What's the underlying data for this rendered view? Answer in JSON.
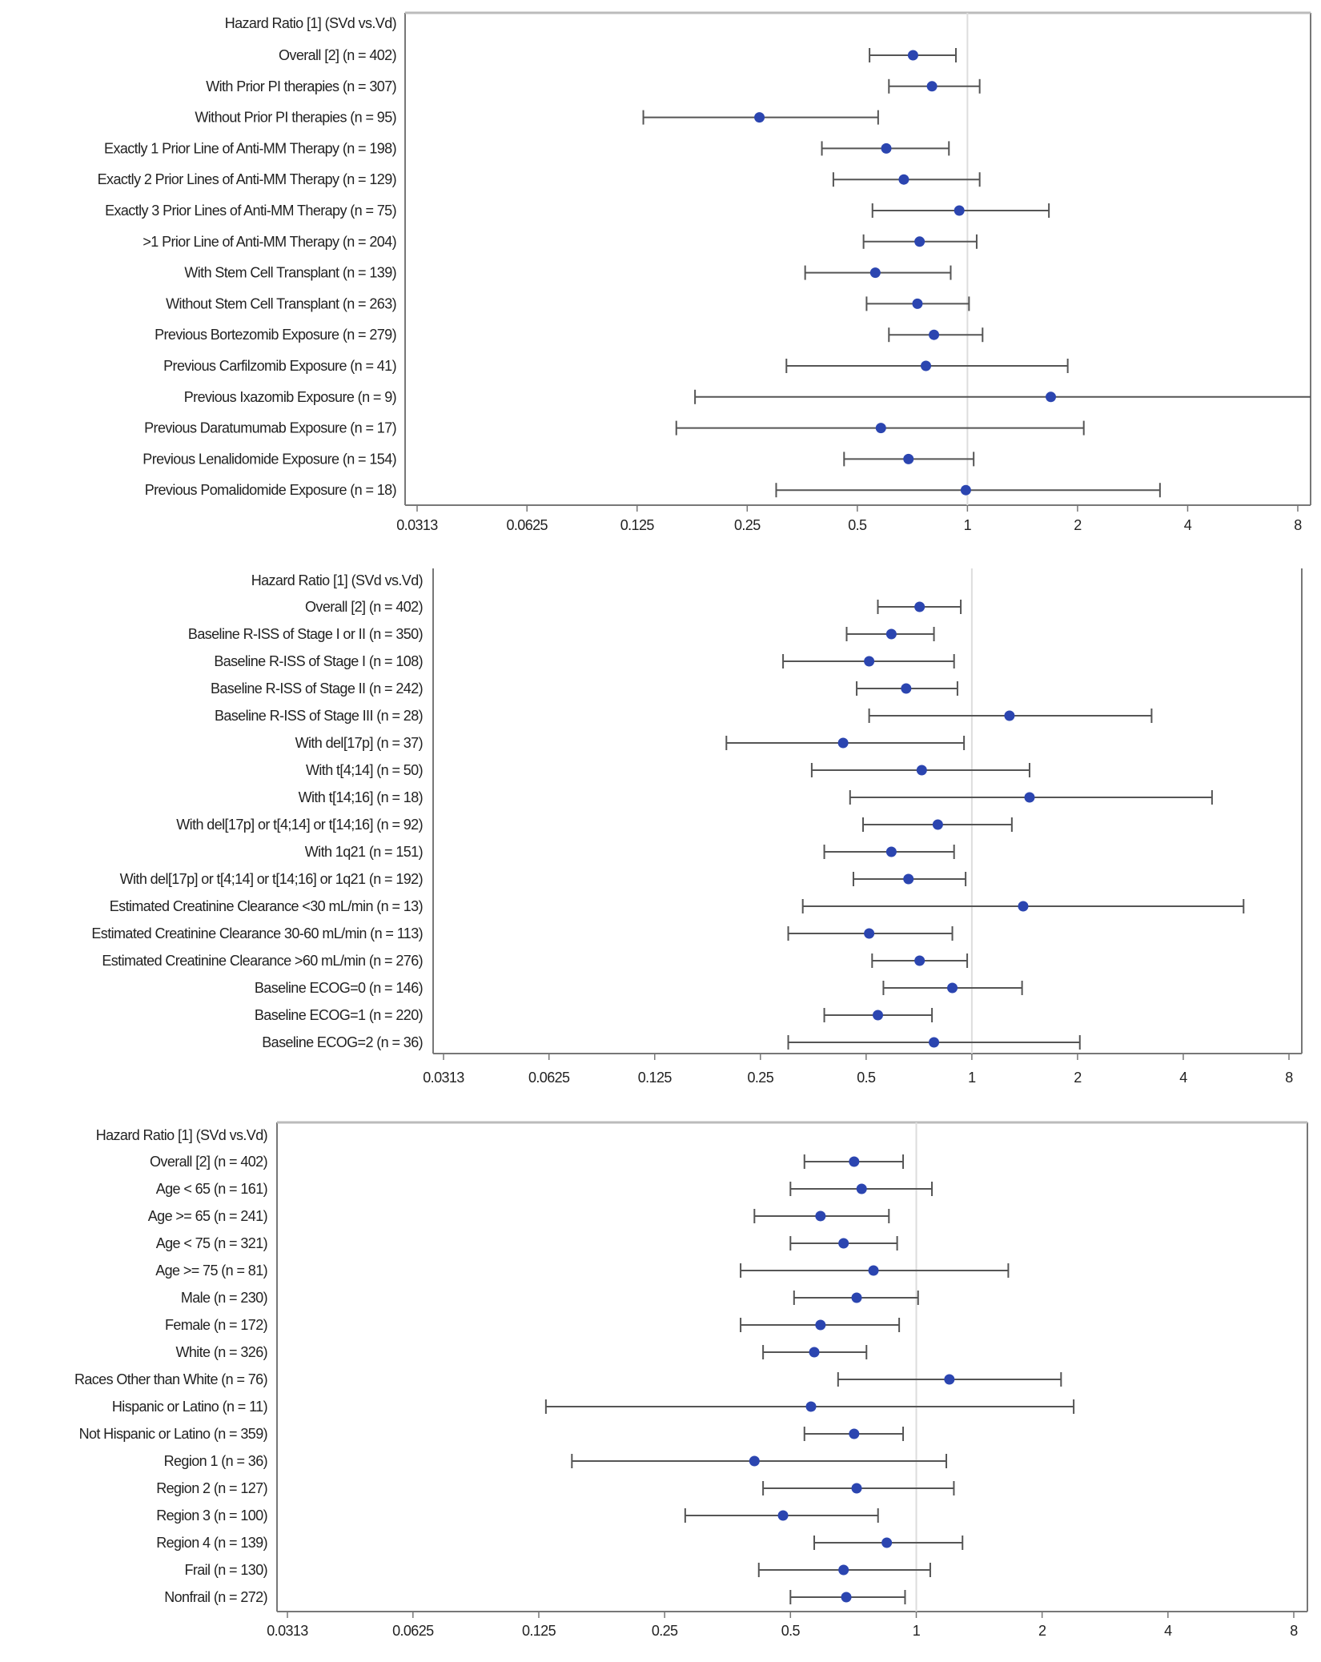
{
  "colors": {
    "point": "#2b45b0",
    "ci_line": "#555555",
    "reference_line": "#dddddd",
    "frame": "#999999"
  },
  "chart_data": [
    {
      "type": "forest",
      "x_scale": "log2",
      "header_label": "Hazard Ratio [1] (SVd vs.Vd)",
      "xticks": [
        "0.0313",
        "0.0625",
        "0.125",
        "0.25",
        "0.5",
        "1",
        "2",
        "4",
        "8"
      ],
      "reference_value": 1,
      "rows": [
        {
          "label": "Overall [2] (n = 402)",
          "hr": 0.71,
          "lo": 0.54,
          "hi": 0.93
        },
        {
          "label": "With Prior PI therapies (n = 307)",
          "hr": 0.8,
          "lo": 0.61,
          "hi": 1.08
        },
        {
          "label": "Without Prior PI therapies (n = 95)",
          "hr": 0.27,
          "lo": 0.13,
          "hi": 0.57
        },
        {
          "label": "Exactly 1 Prior Line of Anti-MM Therapy (n = 198)",
          "hr": 0.6,
          "lo": 0.4,
          "hi": 0.89
        },
        {
          "label": "Exactly 2 Prior Lines of Anti-MM Therapy (n = 129)",
          "hr": 0.67,
          "lo": 0.43,
          "hi": 1.08
        },
        {
          "label": "Exactly 3 Prior Lines of Anti-MM Therapy (n = 75)",
          "hr": 0.95,
          "lo": 0.55,
          "hi": 1.67
        },
        {
          "label": ">1 Prior Line of Anti-MM Therapy (n = 204)",
          "hr": 0.74,
          "lo": 0.52,
          "hi": 1.06
        },
        {
          "label": "With Stem Cell Transplant (n = 139)",
          "hr": 0.56,
          "lo": 0.36,
          "hi": 0.9
        },
        {
          "label": "Without Stem Cell Transplant (n = 263)",
          "hr": 0.73,
          "lo": 0.53,
          "hi": 1.01
        },
        {
          "label": "Previous Bortezomib Exposure  (n = 279)",
          "hr": 0.81,
          "lo": 0.61,
          "hi": 1.1
        },
        {
          "label": "Previous Carfilzomib Exposure (n = 41)",
          "hr": 0.77,
          "lo": 0.32,
          "hi": 1.88
        },
        {
          "label": "Previous Ixazomib Exposure (n = 9)",
          "hr": 1.69,
          "lo": 0.18,
          "hi": 9.0
        },
        {
          "label": "Previous Daratumumab Exposure (n = 17)",
          "hr": 0.58,
          "lo": 0.16,
          "hi": 2.08
        },
        {
          "label": "Previous Lenalidomide Exposure (n = 154)",
          "hr": 0.69,
          "lo": 0.46,
          "hi": 1.04
        },
        {
          "label": "Previous Pomalidomide Exposure (n = 18)",
          "hr": 0.99,
          "lo": 0.3,
          "hi": 3.36
        }
      ]
    },
    {
      "type": "forest",
      "x_scale": "log2",
      "header_label": "Hazard Ratio [1] (SVd vs.Vd)",
      "xticks": [
        "0.0313",
        "0.0625",
        "0.125",
        "0.25",
        "0.5",
        "1",
        "2",
        "4",
        "8"
      ],
      "reference_value": 1,
      "rows": [
        {
          "label": "Overall [2] (n = 402)",
          "hr": 0.71,
          "lo": 0.54,
          "hi": 0.93
        },
        {
          "label": "Baseline R-ISS of Stage I or II (n = 350)",
          "hr": 0.59,
          "lo": 0.44,
          "hi": 0.78
        },
        {
          "label": "Baseline R-ISS of Stage I (n = 108)",
          "hr": 0.51,
          "lo": 0.29,
          "hi": 0.89
        },
        {
          "label": "Baseline R-ISS of Stage II (n = 242)",
          "hr": 0.65,
          "lo": 0.47,
          "hi": 0.91
        },
        {
          "label": "Baseline R-ISS of Stage III (n = 28)",
          "hr": 1.28,
          "lo": 0.51,
          "hi": 3.25
        },
        {
          "label": "With del[17p]  (n = 37)",
          "hr": 0.43,
          "lo": 0.2,
          "hi": 0.95
        },
        {
          "label": "With t[4;14]  (n = 50)",
          "hr": 0.72,
          "lo": 0.35,
          "hi": 1.46
        },
        {
          "label": "With t[14;16] (n = 18)",
          "hr": 1.46,
          "lo": 0.45,
          "hi": 4.83
        },
        {
          "label": "With del[17p] or t[4;14] or t[14;16] (n = 92)",
          "hr": 0.8,
          "lo": 0.49,
          "hi": 1.3
        },
        {
          "label": "With 1q21 (n = 151)",
          "hr": 0.59,
          "lo": 0.38,
          "hi": 0.89
        },
        {
          "label": "With del[17p] or t[4;14] or t[14;16] or 1q21 (n = 192)",
          "hr": 0.66,
          "lo": 0.46,
          "hi": 0.96
        },
        {
          "label": "Estimated Creatinine Clearance <30 mL/min (n = 13)",
          "hr": 1.4,
          "lo": 0.33,
          "hi": 5.94
        },
        {
          "label": "Estimated Creatinine Clearance 30-60 mL/min (n = 113)",
          "hr": 0.51,
          "lo": 0.3,
          "hi": 0.88
        },
        {
          "label": "Estimated Creatinine Clearance >60 mL/min (n = 276)",
          "hr": 0.71,
          "lo": 0.52,
          "hi": 0.97
        },
        {
          "label": "Baseline ECOG=0 (n = 146)",
          "hr": 0.88,
          "lo": 0.56,
          "hi": 1.39
        },
        {
          "label": "Baseline ECOG=1 (n = 220)",
          "hr": 0.54,
          "lo": 0.38,
          "hi": 0.77
        },
        {
          "label": "Baseline ECOG=2 (n = 36)",
          "hr": 0.78,
          "lo": 0.3,
          "hi": 2.03
        }
      ]
    },
    {
      "type": "forest",
      "x_scale": "log2",
      "header_label": "Hazard Ratio [1] (SVd vs.Vd)",
      "xticks": [
        "0.0313",
        "0.0625",
        "0.125",
        "0.25",
        "0.5",
        "1",
        "2",
        "4",
        "8"
      ],
      "reference_value": 1,
      "rows": [
        {
          "label": "Overall [2] (n = 402)",
          "hr": 0.71,
          "lo": 0.54,
          "hi": 0.93
        },
        {
          "label": "Age < 65 (n = 161)",
          "hr": 0.74,
          "lo": 0.5,
          "hi": 1.09
        },
        {
          "label": "Age >= 65 (n = 241)",
          "hr": 0.59,
          "lo": 0.41,
          "hi": 0.86
        },
        {
          "label": "Age < 75 (n = 321)",
          "hr": 0.67,
          "lo": 0.5,
          "hi": 0.9
        },
        {
          "label": "Age >= 75 (n = 81)",
          "hr": 0.79,
          "lo": 0.38,
          "hi": 1.66
        },
        {
          "label": "Male (n = 230)",
          "hr": 0.72,
          "lo": 0.51,
          "hi": 1.01
        },
        {
          "label": "Female (n = 172)",
          "hr": 0.59,
          "lo": 0.38,
          "hi": 0.91
        },
        {
          "label": "White (n = 326)",
          "hr": 0.57,
          "lo": 0.43,
          "hi": 0.76
        },
        {
          "label": "Races Other than White (n = 76)",
          "hr": 1.2,
          "lo": 0.65,
          "hi": 2.22
        },
        {
          "label": "Hispanic or Latino (n = 11)",
          "hr": 0.56,
          "lo": 0.13,
          "hi": 2.38
        },
        {
          "label": "Not Hispanic or Latino (n = 359)",
          "hr": 0.71,
          "lo": 0.54,
          "hi": 0.93
        },
        {
          "label": "Region 1 (n = 36)",
          "hr": 0.41,
          "lo": 0.15,
          "hi": 1.18
        },
        {
          "label": "Region 2 (n = 127)",
          "hr": 0.72,
          "lo": 0.43,
          "hi": 1.23
        },
        {
          "label": "Region 3 (n = 100)",
          "hr": 0.48,
          "lo": 0.28,
          "hi": 0.81
        },
        {
          "label": "Region 4 (n = 139)",
          "hr": 0.85,
          "lo": 0.57,
          "hi": 1.29
        },
        {
          "label": "Frail (n = 130)",
          "hr": 0.67,
          "lo": 0.42,
          "hi": 1.08
        },
        {
          "label": "Nonfrail (n = 272)",
          "hr": 0.68,
          "lo": 0.5,
          "hi": 0.94
        }
      ]
    }
  ]
}
